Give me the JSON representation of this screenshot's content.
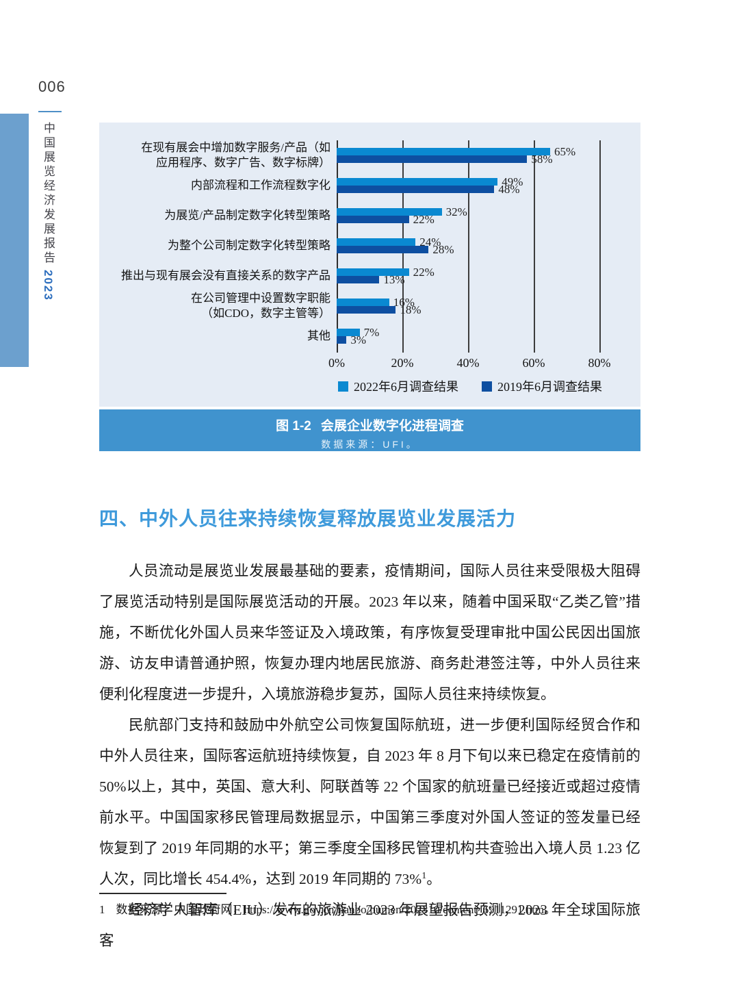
{
  "page": {
    "number": "006",
    "sidebar": {
      "title": "中国展览经济发展报告",
      "year": "2023"
    }
  },
  "chart_data": {
    "type": "bar",
    "orientation": "horizontal",
    "figure_label": "图 1-2",
    "title": "会展企业数字化进程调查",
    "source_note": "数据来源：UFI。",
    "xlim": [
      0,
      80
    ],
    "x_ticks": [
      "0%",
      "20%",
      "40%",
      "60%",
      "80%"
    ],
    "grid": true,
    "legend_position": "bottom",
    "categories": [
      "在现有展会中增加数字服务/产品（如应用程序、数字广告、数字标牌）",
      "内部流程和工作流程数字化",
      "为展览/产品制定数字化转型策略",
      "为整个公司制定数字化转型策略",
      "推出与现有展会没有直接关系的数字产品",
      "在公司管理中设置数字职能（如CDO，数字主管等）",
      "其他"
    ],
    "category_label_lines": [
      [
        "在现有展会中增加数字服务/产品（如",
        "应用程序、数字广告、数字标牌）"
      ],
      [
        "内部流程和工作流程数字化"
      ],
      [
        "为展览/产品制定数字化转型策略"
      ],
      [
        "为整个公司制定数字化转型策略"
      ],
      [
        "推出与现有展会没有直接关系的数字产品"
      ],
      [
        "在公司管理中设置数字职能",
        "（如CDO，数字主管等）"
      ],
      [
        "其他"
      ]
    ],
    "series": [
      {
        "name": "2022年6月调查结果",
        "color": "#0a89d1",
        "values": [
          65,
          49,
          32,
          24,
          22,
          16,
          7
        ]
      },
      {
        "name": "2019年6月调查结果",
        "color": "#0e4fa1",
        "values": [
          58,
          48,
          22,
          28,
          13,
          18,
          3
        ]
      }
    ]
  },
  "section": {
    "heading": "四、中外人员往来持续恢复释放展览业发展活力"
  },
  "body": {
    "p1": "人员流动是展览业发展最基础的要素，疫情期间，国际人员往来受限极大阻碍了展览活动特别是国际展览活动的开展。2023 年以来，随着中国采取“乙类乙管”措施，不断优化外国人员来华签证及入境政策，有序恢复受理审批中国公民因出国旅游、访友申请普通护照，恢复办理内地居民旅游、商务赴港签注等，中外人员往来便利化程度进一步提升，入境旅游稳步复苏，国际人员往来持续恢复。",
    "p2": "民航部门支持和鼓励中外航空公司恢复国际航班，进一步便利国际经贸合作和中外人员往来，国际客运航班持续恢复，自 2023 年 8 月下旬以来已稳定在疫情前的 50%以上，其中，英国、意大利、阿联酋等 22 个国家的航班量已经接近或超过疫情前水平。中国国家移民管理局数据显示，中国第三季度对外国人签证的签发量已经恢复到了 2019 年同期的水平；第三季度全国移民管理机构共查验出入境人员 1.23 亿人次，同比增长 454.4%，达到 2019 年同期的 73%",
    "p2_sup": "1",
    "p2_end": "。",
    "p3": "经济学人智库（EIU）发布的旅游业 2023 年展望报告预测，2023 年全球国际旅客"
  },
  "footnote": {
    "marker": "1",
    "text": "数据来源：中国政府网，https://www.gov.cn/lianbo/bumen/202310/content_6911291.htm。"
  }
}
